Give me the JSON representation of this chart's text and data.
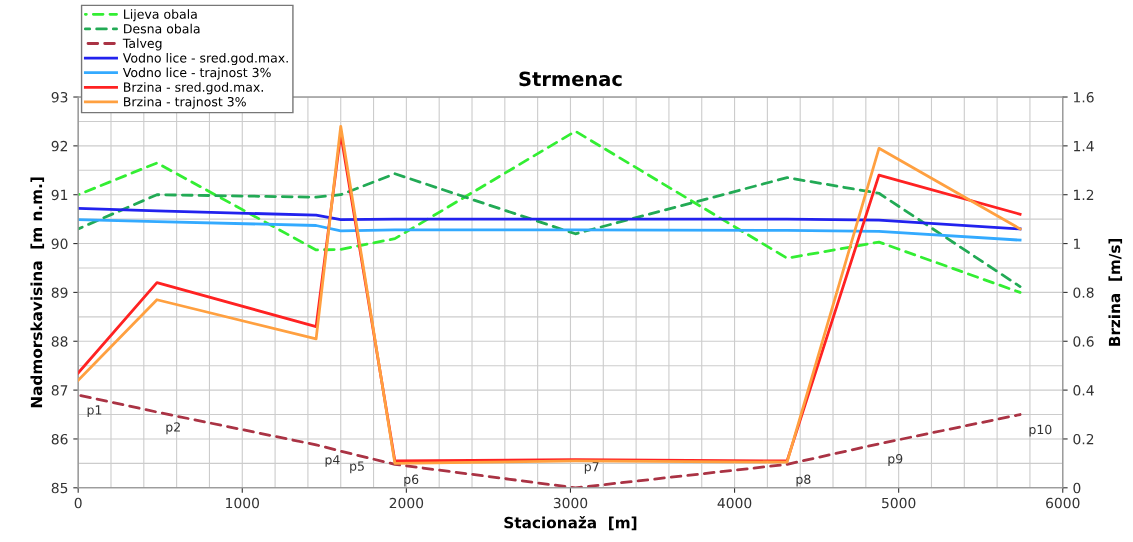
{
  "chart_data": {
    "type": "line",
    "title": "Strmenac",
    "xlabel": "Stacionaža  [m]",
    "ylabel": "Nadmorskavisina  [m n.m.]",
    "y2label": "Brzina  [m/s]",
    "x": [
      0,
      480,
      1450,
      1600,
      1930,
      3030,
      4320,
      4880,
      5740
    ],
    "series": [
      {
        "name": "Lijeva obala",
        "color": "#33ee33",
        "line_style": "dashed",
        "values": [
          91.0,
          91.65,
          89.87,
          89.88,
          90.1,
          92.3,
          89.7,
          90.03,
          89.0
        ]
      },
      {
        "name": "Desna obala",
        "color": "#22aa55",
        "line_style": "dashed",
        "values": [
          90.3,
          91.0,
          90.95,
          91.0,
          91.43,
          90.2,
          91.35,
          91.03,
          89.12
        ]
      },
      {
        "name": "Talveg",
        "color": "#aa3344",
        "line_style": "dashed",
        "values": [
          86.9,
          86.55,
          85.88,
          85.75,
          85.48,
          85.0,
          85.48,
          85.9,
          86.5
        ]
      },
      {
        "name": "Vodno lice - sred.god.max.",
        "color": "#2222ee",
        "line_style": "solid",
        "values": [
          90.72,
          90.67,
          90.58,
          90.49,
          90.5,
          90.5,
          90.5,
          90.48,
          90.3
        ]
      },
      {
        "name": "Vodno lice - trajnost 3%",
        "color": "#33aaff",
        "line_style": "solid",
        "values": [
          90.49,
          90.45,
          90.37,
          90.26,
          90.28,
          90.28,
          90.27,
          90.25,
          90.07
        ]
      },
      {
        "name": "Brzina - sred.god.max.",
        "color": "#ff2222",
        "line_style": "solid",
        "axis": "y2",
        "values": [
          0.47,
          0.84,
          0.66,
          1.45,
          0.11,
          0.115,
          0.11,
          1.28,
          1.12
        ]
      },
      {
        "name": "Brzina - trajnost 3%",
        "color": "#ffa040",
        "line_style": "solid",
        "axis": "y2",
        "values": [
          0.44,
          0.77,
          0.61,
          1.48,
          0.1,
          0.11,
          0.105,
          1.39,
          1.06
        ]
      }
    ],
    "xlim": [
      0,
      6000
    ],
    "xticks": [
      0,
      1000,
      2000,
      3000,
      4000,
      5000,
      6000
    ],
    "ylim": [
      85,
      93
    ],
    "yticks": [
      85,
      86,
      87,
      88,
      89,
      90,
      91,
      92,
      93
    ],
    "y2lim": [
      0,
      1.6
    ],
    "y2ticks": [
      0,
      0.2,
      0.4,
      0.6,
      0.8,
      1,
      1.2,
      1.4,
      1.6
    ],
    "grid": true,
    "legend": "top left",
    "marker": "none",
    "annotations": [
      {
        "text": "p1",
        "x": 0,
        "y": 86.9
      },
      {
        "text": "p2",
        "x": 480,
        "y": 86.55
      },
      {
        "text": "p4",
        "x": 1450,
        "y": 85.88
      },
      {
        "text": "p5",
        "x": 1600,
        "y": 85.75
      },
      {
        "text": "p6",
        "x": 1930,
        "y": 85.48
      },
      {
        "text": "p7",
        "x": 3030,
        "y": 85.0
      },
      {
        "text": "p8",
        "x": 4320,
        "y": 85.48
      },
      {
        "text": "p9",
        "x": 4880,
        "y": 85.9
      },
      {
        "text": "p10",
        "x": 5740,
        "y": 86.5
      }
    ]
  }
}
